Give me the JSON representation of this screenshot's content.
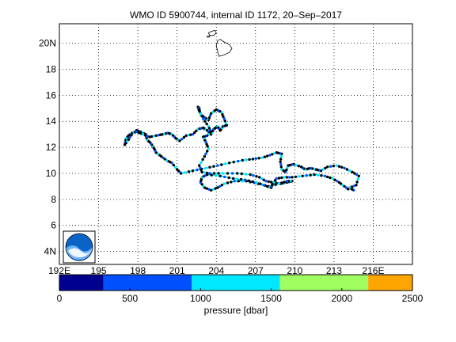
{
  "title": "WMO ID 5900744, internal ID 1172, 20–Sep–2017",
  "map": {
    "lon_range": [
      192,
      219
    ],
    "lat_range": [
      3,
      21.5
    ],
    "x_ticks": [
      {
        "v": 192,
        "label": "192E"
      },
      {
        "v": 195,
        "label": "195"
      },
      {
        "v": 198,
        "label": "198"
      },
      {
        "v": 201,
        "label": "201"
      },
      {
        "v": 204,
        "label": "204"
      },
      {
        "v": 207,
        "label": "207"
      },
      {
        "v": 210,
        "label": "210"
      },
      {
        "v": 213,
        "label": "213"
      },
      {
        "v": 216,
        "label": "216E"
      }
    ],
    "y_ticks": [
      {
        "v": 4,
        "label": "4N"
      },
      {
        "v": 6,
        "label": "6"
      },
      {
        "v": 8,
        "label": "8"
      },
      {
        "v": 10,
        "label": "10"
      },
      {
        "v": 12,
        "label": "12"
      },
      {
        "v": 14,
        "label": "14"
      },
      {
        "v": 16,
        "label": "16"
      },
      {
        "v": 18,
        "label": "18"
      },
      {
        "v": 20,
        "label": "20N"
      }
    ],
    "grid": "dotted",
    "logo": "noaa-logo",
    "track": [
      [
        214.5,
        8.7
      ],
      [
        214.2,
        8.9
      ],
      [
        214.7,
        9.1
      ],
      [
        214.9,
        9.8
      ],
      [
        214.4,
        10.1
      ],
      [
        213.8,
        10.4
      ],
      [
        213.2,
        10.6
      ],
      [
        212.5,
        10.5
      ],
      [
        212.0,
        10.2
      ],
      [
        211.6,
        10.3
      ],
      [
        211.2,
        10.4
      ],
      [
        210.8,
        10.3
      ],
      [
        210.5,
        10.5
      ],
      [
        209.9,
        10.7
      ],
      [
        209.5,
        10.6
      ],
      [
        209.3,
        10.1
      ],
      [
        209.0,
        10.3
      ],
      [
        208.9,
        10.9
      ],
      [
        209.0,
        11.5
      ],
      [
        208.6,
        11.6
      ],
      [
        208.1,
        11.4
      ],
      [
        207.5,
        11.2
      ],
      [
        206.8,
        11.1
      ],
      [
        206.0,
        11.0
      ],
      [
        205.0,
        10.8
      ],
      [
        204.1,
        10.6
      ],
      [
        203.2,
        10.4
      ],
      [
        202.2,
        10.2
      ],
      [
        201.3,
        10.0
      ],
      [
        201.0,
        10.3
      ],
      [
        200.6,
        10.8
      ],
      [
        200.2,
        11.0
      ],
      [
        199.8,
        11.3
      ],
      [
        199.4,
        11.6
      ],
      [
        199.2,
        12.0
      ],
      [
        199.0,
        12.3
      ],
      [
        198.7,
        12.6
      ],
      [
        198.6,
        13.0
      ],
      [
        198.2,
        13.2
      ],
      [
        197.9,
        13.3
      ],
      [
        197.4,
        13.0
      ],
      [
        197.1,
        12.7
      ],
      [
        197.0,
        12.2
      ],
      [
        197.3,
        12.6
      ],
      [
        197.6,
        13.1
      ],
      [
        197.9,
        13.2
      ],
      [
        198.4,
        13.0
      ],
      [
        198.9,
        12.8
      ],
      [
        199.4,
        12.9
      ],
      [
        199.9,
        13.0
      ],
      [
        200.3,
        13.1
      ],
      [
        200.6,
        13.0
      ],
      [
        200.9,
        12.7
      ],
      [
        201.2,
        12.5
      ],
      [
        201.7,
        12.9
      ],
      [
        202.2,
        13.0
      ],
      [
        202.6,
        13.4
      ],
      [
        203.0,
        13.5
      ],
      [
        203.3,
        13.3
      ],
      [
        203.6,
        13.0
      ],
      [
        203.8,
        13.4
      ],
      [
        204.1,
        13.6
      ],
      [
        204.3,
        13.3
      ],
      [
        204.5,
        13.6
      ],
      [
        204.8,
        13.7
      ],
      [
        204.6,
        14.2
      ],
      [
        204.4,
        14.7
      ],
      [
        204.0,
        14.9
      ],
      [
        203.6,
        14.6
      ],
      [
        203.4,
        14.1
      ],
      [
        203.1,
        14.3
      ],
      [
        202.8,
        14.5
      ],
      [
        202.7,
        15.0
      ],
      [
        202.6,
        15.1
      ],
      [
        202.7,
        14.8
      ],
      [
        203.0,
        14.2
      ],
      [
        203.4,
        13.6
      ],
      [
        203.6,
        13.2
      ],
      [
        203.3,
        12.9
      ],
      [
        203.0,
        12.8
      ],
      [
        203.2,
        12.4
      ],
      [
        203.4,
        11.9
      ],
      [
        203.1,
        11.3
      ],
      [
        202.7,
        10.6
      ],
      [
        202.9,
        10.1
      ],
      [
        203.5,
        10.0
      ],
      [
        204.5,
        10.0
      ],
      [
        205.6,
        10.0
      ],
      [
        206.6,
        9.9
      ],
      [
        207.3,
        9.7
      ],
      [
        207.8,
        9.4
      ],
      [
        208.4,
        9.3
      ],
      [
        208.9,
        9.2
      ],
      [
        209.4,
        9.3
      ],
      [
        209.8,
        9.4
      ],
      [
        209.4,
        9.4
      ],
      [
        208.8,
        9.2
      ],
      [
        208.0,
        9.0
      ],
      [
        207.2,
        9.2
      ],
      [
        206.3,
        9.4
      ],
      [
        205.4,
        9.4
      ],
      [
        204.6,
        9.2
      ],
      [
        204.1,
        8.9
      ],
      [
        203.6,
        8.7
      ],
      [
        203.1,
        8.9
      ],
      [
        202.8,
        9.3
      ],
      [
        202.9,
        9.7
      ],
      [
        203.3,
        9.9
      ],
      [
        204.3,
        9.8
      ],
      [
        205.3,
        9.6
      ],
      [
        206.2,
        9.5
      ],
      [
        207.1,
        9.3
      ],
      [
        207.9,
        9.0
      ],
      [
        208.2,
        8.9
      ],
      [
        208.3,
        9.2
      ],
      [
        208.6,
        9.6
      ],
      [
        209.2,
        9.7
      ],
      [
        209.8,
        9.7
      ],
      [
        210.6,
        9.8
      ],
      [
        211.5,
        9.9
      ],
      [
        212.3,
        9.8
      ],
      [
        212.9,
        9.6
      ],
      [
        213.4,
        9.3
      ],
      [
        213.8,
        9.0
      ],
      [
        214.2,
        8.7
      ]
    ],
    "land": [
      {
        "name": "hawaii-island",
        "pts": [
          [
            204.3,
            20.3
          ],
          [
            204.6,
            20.1
          ],
          [
            205.0,
            19.9
          ],
          [
            205.2,
            19.6
          ],
          [
            205.0,
            19.3
          ],
          [
            204.6,
            19.1
          ],
          [
            204.2,
            19.0
          ],
          [
            204.1,
            19.4
          ],
          [
            204.0,
            19.8
          ],
          [
            204.1,
            20.2
          ]
        ]
      },
      {
        "name": "maui",
        "pts": [
          [
            203.6,
            20.9
          ],
          [
            203.9,
            21.0
          ],
          [
            204.0,
            20.8
          ],
          [
            203.8,
            20.6
          ],
          [
            203.5,
            20.6
          ],
          [
            203.4,
            20.8
          ]
        ]
      },
      {
        "name": "kahoolawe",
        "pts": [
          [
            203.3,
            20.55
          ],
          [
            203.5,
            20.55
          ],
          [
            203.45,
            20.48
          ],
          [
            203.3,
            20.48
          ]
        ]
      }
    ]
  },
  "colorbar": {
    "label": "pressure [dbar]",
    "min": 0,
    "max": 2500,
    "tick_labels": [
      "0",
      "500",
      "1000",
      "1500",
      "2000",
      "2500"
    ],
    "segments": [
      {
        "from": 0,
        "to": 312,
        "color": "#00008f"
      },
      {
        "from": 312,
        "to": 937,
        "color": "#0050ff"
      },
      {
        "from": 937,
        "to": 1562,
        "color": "#00e8ff"
      },
      {
        "from": 1562,
        "to": 2187,
        "color": "#a0ff60"
      },
      {
        "from": 2187,
        "to": 2500,
        "color": "#ffa500"
      }
    ]
  },
  "colors": {
    "track_cyan": "#00e8ff",
    "track_blue": "#0050ff",
    "track_black": "#000000",
    "noaa_blue": "#0a64c8"
  }
}
